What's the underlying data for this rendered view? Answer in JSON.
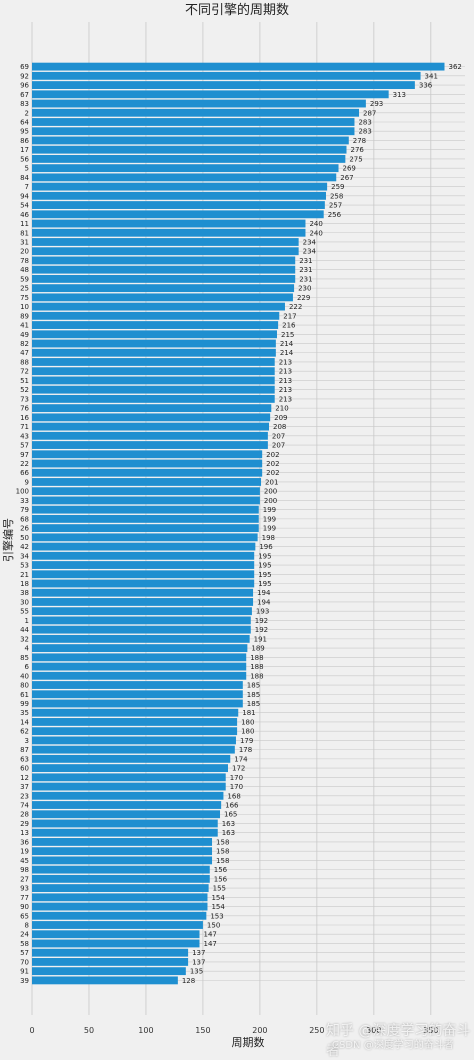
{
  "chart_data": {
    "type": "bar",
    "orientation": "horizontal",
    "title": "不同引擎的周期数",
    "xlabel": "周期数",
    "ylabel": "引擎编号",
    "xlim": [
      0,
      380
    ],
    "xticks": [
      0,
      50,
      100,
      150,
      200,
      250,
      300,
      350
    ],
    "grid": true,
    "bar_color": "#1f8fd0",
    "categories": [
      "69",
      "92",
      "96",
      "67",
      "83",
      "2",
      "64",
      "95",
      "86",
      "17",
      "56",
      "5",
      "84",
      "7",
      "94",
      "54",
      "46",
      "11",
      "81",
      "31",
      "20",
      "78",
      "48",
      "59",
      "25",
      "75",
      "10",
      "89",
      "41",
      "49",
      "82",
      "47",
      "88",
      "72",
      "51",
      "52",
      "73",
      "76",
      "16",
      "71",
      "43",
      "57",
      "97",
      "22",
      "66",
      "9",
      "100",
      "33",
      "79",
      "68",
      "26",
      "50",
      "42",
      "34",
      "53",
      "21",
      "18",
      "38",
      "30",
      "55",
      "1",
      "44",
      "32",
      "4",
      "85",
      "6",
      "40",
      "80",
      "61",
      "99",
      "35",
      "14",
      "62",
      "3",
      "87",
      "63",
      "60",
      "12",
      "37",
      "23",
      "74",
      "28",
      "29",
      "13",
      "36",
      "19",
      "45",
      "98",
      "27",
      "93",
      "77",
      "90",
      "65",
      "8",
      "24",
      "58",
      "57",
      "70",
      "91",
      "39"
    ],
    "values": [
      362,
      341,
      336,
      313,
      293,
      287,
      283,
      283,
      278,
      276,
      275,
      269,
      267,
      259,
      258,
      257,
      256,
      240,
      240,
      234,
      234,
      231,
      231,
      231,
      230,
      229,
      222,
      217,
      216,
      215,
      214,
      214,
      213,
      213,
      213,
      213,
      213,
      210,
      209,
      208,
      207,
      207,
      202,
      202,
      202,
      201,
      200,
      200,
      199,
      199,
      199,
      198,
      196,
      195,
      195,
      195,
      195,
      194,
      194,
      193,
      192,
      192,
      191,
      189,
      188,
      188,
      188,
      185,
      185,
      185,
      181,
      180,
      180,
      179,
      178,
      174,
      172,
      170,
      170,
      168,
      166,
      165,
      163,
      163,
      158,
      158,
      158,
      156,
      156,
      155,
      154,
      154,
      153,
      150,
      147,
      147,
      137,
      137,
      135,
      128
    ]
  },
  "watermarks": {
    "zhihu": "知乎 @深度学习的奋斗者",
    "csdn": "CSDN @深度学习的奋斗者"
  },
  "colors": {
    "background": "#f0f0f0",
    "grid": "#c8c8c8",
    "bar": "#1f8fd0"
  }
}
